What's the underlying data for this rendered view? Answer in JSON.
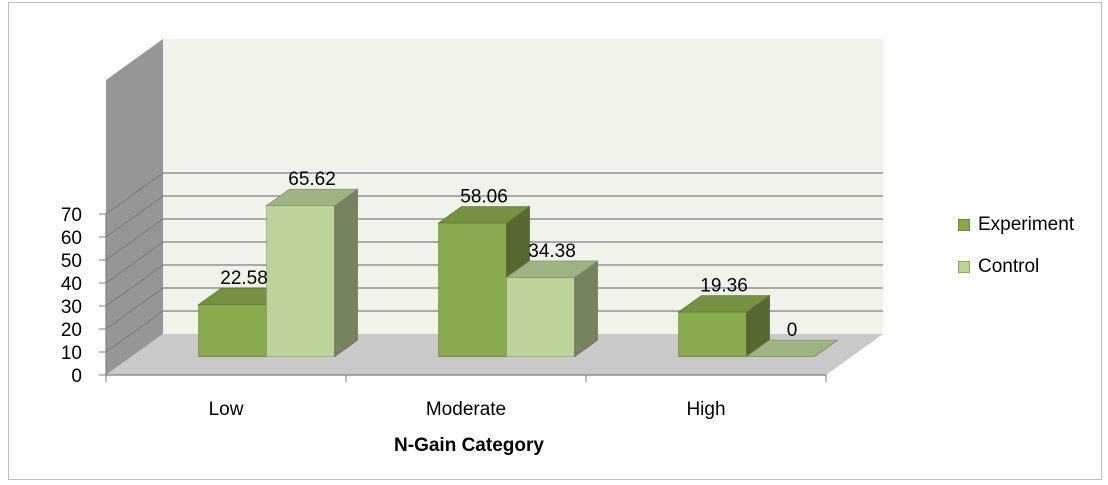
{
  "chart_data": {
    "type": "bar",
    "style": "3d-clustered-column",
    "categories": [
      "Low",
      "Moderate",
      "High"
    ],
    "series": [
      {
        "name": "Experiment",
        "values": [
          22.58,
          58.06,
          19.36
        ],
        "labels": [
          "22.58",
          "58.06",
          "19.36"
        ],
        "color": "#8aab4d"
      },
      {
        "name": "Control",
        "values": [
          65.62,
          34.38,
          0
        ],
        "labels": [
          "65.62",
          "34.38",
          "0"
        ],
        "color": "#bcd39a"
      }
    ],
    "title": "",
    "xlabel": "N-Gain Category",
    "ylabel": "",
    "ylim": [
      0,
      70
    ],
    "yticks": [
      "0",
      "10",
      "20",
      "30",
      "40",
      "50",
      "60",
      "70"
    ],
    "grid": true,
    "legend_position": "right",
    "colors": {
      "back_wall": "#eff3ea",
      "floor": "#c9c9c9",
      "side_wall": "#969696",
      "gridline": "#7f7f7f"
    }
  }
}
